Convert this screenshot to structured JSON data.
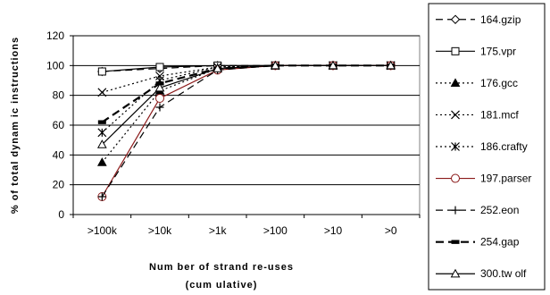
{
  "chart_data": {
    "type": "line",
    "title": "",
    "xlabel": "Num ber of strand re-uses",
    "xlabel_sub": "(cum ulative)",
    "ylabel": "% of total dynam ic instructions",
    "categories": [
      ">100k",
      ">10k",
      ">1k",
      ">100",
      ">10",
      ">0"
    ],
    "ylim": [
      0,
      120
    ],
    "yticks": [
      0,
      20,
      40,
      60,
      80,
      100,
      120
    ],
    "grid": "horizontal",
    "legend_position": "right",
    "series": [
      {
        "name": "164.gzip",
        "values": [
          96,
          98,
          100,
          100,
          100,
          100
        ],
        "marker": "diamond-open",
        "dash": "long",
        "color": "#000000"
      },
      {
        "name": "175.vpr",
        "values": [
          96,
          99,
          100,
          100,
          100,
          100
        ],
        "marker": "square-open",
        "dash": "solid",
        "color": "#000000"
      },
      {
        "name": "176.gcc",
        "values": [
          35,
          83,
          98,
          100,
          100,
          100
        ],
        "marker": "triangle-filled",
        "dash": "dotted",
        "color": "#000000"
      },
      {
        "name": "181.mcf",
        "values": [
          82,
          93,
          99,
          100,
          100,
          100
        ],
        "marker": "x",
        "dash": "dotted",
        "color": "#000000"
      },
      {
        "name": "186.crafty",
        "values": [
          55,
          90,
          99,
          100,
          100,
          100
        ],
        "marker": "star",
        "dash": "dotted",
        "color": "#000000"
      },
      {
        "name": "197.parser",
        "values": [
          12,
          78,
          97,
          100,
          100,
          100
        ],
        "marker": "circle-open",
        "dash": "solid",
        "color": "#8b1a1a"
      },
      {
        "name": "252.eon",
        "values": [
          12,
          72,
          97,
          100,
          100,
          100
        ],
        "marker": "plus",
        "dash": "long",
        "color": "#000000"
      },
      {
        "name": "254.gap",
        "values": [
          62,
          88,
          98,
          100,
          100,
          100
        ],
        "marker": "dash-filled",
        "dash": "long-thick",
        "color": "#000000"
      },
      {
        "name": "300.tw olf",
        "values": [
          47,
          85,
          98,
          100,
          100,
          100
        ],
        "marker": "triangle-open",
        "dash": "solid",
        "color": "#000000"
      }
    ]
  }
}
